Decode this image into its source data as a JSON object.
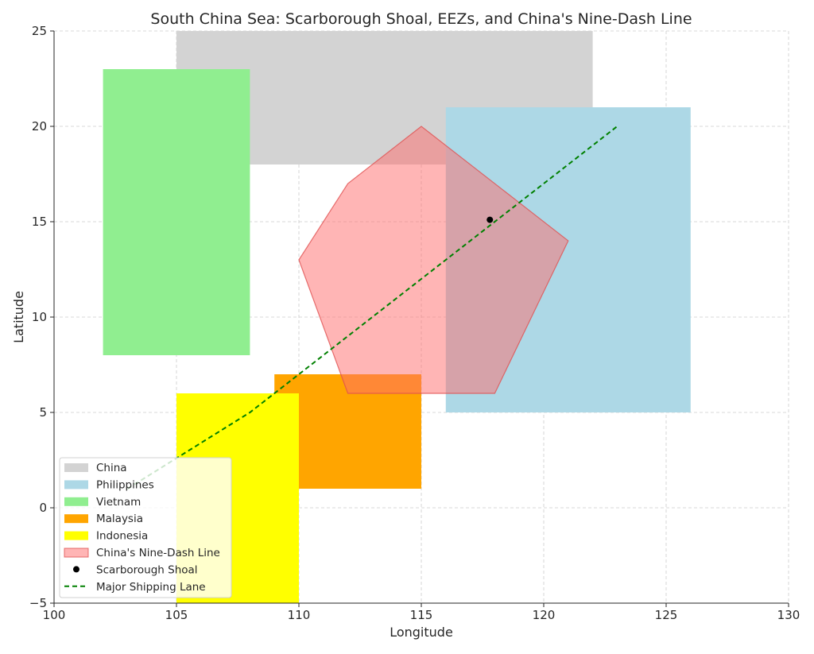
{
  "chart_data": {
    "type": "area",
    "title": "South China Sea: Scarborough Shoal, EEZs, and China's Nine-Dash Line",
    "xlabel": "Longitude",
    "ylabel": "Latitude",
    "xlim": [
      100,
      130
    ],
    "ylim": [
      -5,
      25
    ],
    "x_ticks": [
      "100",
      "105",
      "110",
      "115",
      "120",
      "125",
      "130"
    ],
    "y_ticks": [
      "25",
      "20",
      "15",
      "10",
      "5",
      "0",
      "−5"
    ],
    "grid": true,
    "legend_position": "lower-left",
    "series": [
      {
        "name": "China",
        "kind": "rect",
        "color": "#d3d3d3",
        "opacity": 1,
        "polygon": [
          [
            105,
            18
          ],
          [
            122,
            18
          ],
          [
            122,
            25
          ],
          [
            105,
            25
          ]
        ]
      },
      {
        "name": "Philippines",
        "kind": "rect",
        "color": "#add8e6",
        "opacity": 1,
        "polygon": [
          [
            116,
            5
          ],
          [
            126,
            5
          ],
          [
            126,
            21
          ],
          [
            116,
            21
          ]
        ]
      },
      {
        "name": "Vietnam",
        "kind": "rect",
        "color": "#90ee90",
        "opacity": 1,
        "polygon": [
          [
            102,
            8
          ],
          [
            108,
            8
          ],
          [
            108,
            23
          ],
          [
            102,
            23
          ]
        ]
      },
      {
        "name": "Malaysia",
        "kind": "rect",
        "color": "#ffa500",
        "opacity": 1,
        "polygon": [
          [
            109,
            1
          ],
          [
            115,
            1
          ],
          [
            115,
            7
          ],
          [
            109,
            7
          ]
        ]
      },
      {
        "name": "Indonesia",
        "kind": "rect",
        "color": "#ffff00",
        "opacity": 1,
        "polygon": [
          [
            105,
            -5
          ],
          [
            110,
            -5
          ],
          [
            110,
            6
          ],
          [
            105,
            6
          ]
        ]
      },
      {
        "name": "China's Nine-Dash Line",
        "kind": "polygon",
        "color": "#ff6b6b",
        "edge_color": "#e05050",
        "opacity": 0.5,
        "polygon": [
          [
            110,
            13
          ],
          [
            112,
            17
          ],
          [
            115,
            20
          ],
          [
            121,
            14
          ],
          [
            118,
            6
          ],
          [
            112,
            6
          ]
        ]
      },
      {
        "name": "Scarborough Shoal",
        "kind": "point",
        "color": "#000000",
        "x": 117.8,
        "y": 15.1
      },
      {
        "name": "Major Shipping Lane",
        "kind": "line",
        "color": "#008000",
        "dashed": true,
        "points": [
          [
            103,
            1
          ],
          [
            108,
            5
          ],
          [
            115,
            12
          ],
          [
            123,
            20
          ]
        ]
      }
    ]
  }
}
